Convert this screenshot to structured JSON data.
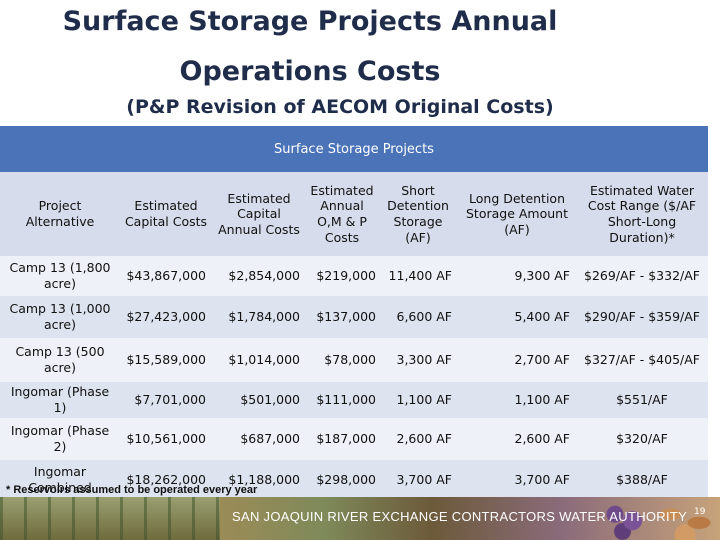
{
  "title_line1": "Surface Storage Projects Annual",
  "title_line2": "Operations Costs",
  "subtitle": "(P&P Revision of AECOM Original Costs)",
  "table": {
    "group_header": "Surface Storage Projects",
    "columns": [
      "Project Alternative",
      "Estimated Capital Costs",
      "Estimated Capital Annual Costs",
      "Estimated Annual O,M & P Costs",
      "Short Detention Storage (AF)",
      "Long Detention Storage Amount (AF)",
      "Estimated Water Cost Range ($/AF Short-Long Duration)*"
    ],
    "rows": [
      [
        "Camp 13 (1,800 acre)",
        "$43,867,000",
        "$2,854,000",
        "$219,000",
        "11,400 AF",
        "9,300 AF",
        "$269/AF - $332/AF"
      ],
      [
        "Camp 13 (1,000 acre)",
        "$27,423,000",
        "$1,784,000",
        "$137,000",
        "6,600 AF",
        "5,400 AF",
        "$290/AF - $359/AF"
      ],
      [
        "Camp 13 (500 acre)",
        "$15,589,000",
        "$1,014,000",
        "$78,000",
        "3,300 AF",
        "2,700 AF",
        "$327/AF - $405/AF"
      ],
      [
        "Ingomar (Phase 1)",
        "$7,701,000",
        "$501,000",
        "$111,000",
        "1,100 AF",
        "1,100 AF",
        "$551/AF"
      ],
      [
        "Ingomar (Phase 2)",
        "$10,561,000",
        "$687,000",
        "$187,000",
        "2,600 AF",
        "2,600 AF",
        "$320/AF"
      ],
      [
        "Ingomar Combined",
        "$18,262,000",
        "$1,188,000",
        "$298,000",
        "3,700 AF",
        "3,700 AF",
        "$388/AF"
      ]
    ]
  },
  "footnote": "* Reservoirs assumed to be operated every year",
  "footer": {
    "organization": "SAN JOAQUIN RIVER EXCHANGE CONTRACTORS WATER AUTHORITY",
    "page_number": "19"
  }
}
